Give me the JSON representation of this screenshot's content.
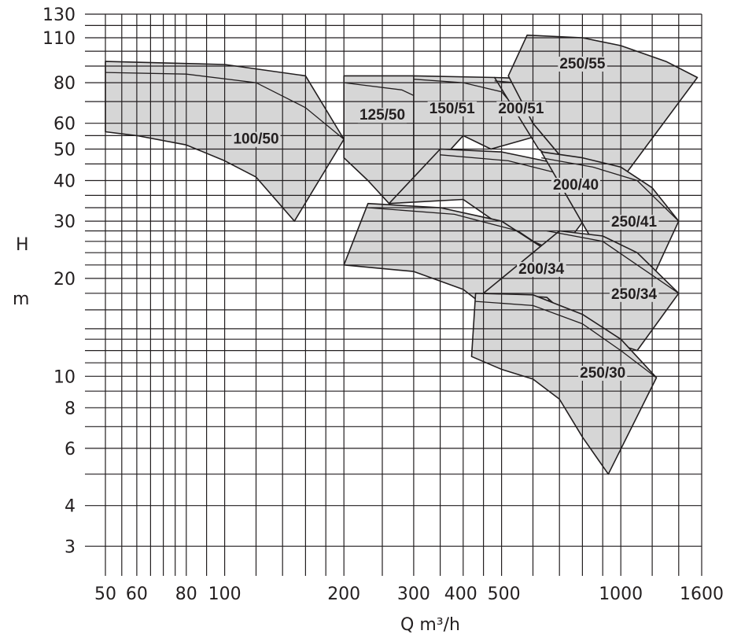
{
  "chart_data": {
    "type": "area",
    "title": "",
    "xlabel": "Q m³/h",
    "ylabel": "H m",
    "ylabel_parts": [
      "H",
      "m"
    ],
    "xscale": "log",
    "yscale": "log",
    "xlim": [
      50,
      1600
    ],
    "ylim": [
      2.6,
      130
    ],
    "grid": true,
    "x_ticks": [
      50,
      60,
      80,
      100,
      200,
      300,
      400,
      500,
      1000,
      1600
    ],
    "x_tick_labels": [
      "50",
      "60",
      "80",
      "100",
      "200",
      "300",
      "400",
      "500",
      "1000",
      "1600"
    ],
    "x_gridlines": [
      50,
      55,
      60,
      65,
      70,
      75,
      80,
      90,
      100,
      120,
      140,
      160,
      180,
      200,
      250,
      300,
      350,
      400,
      450,
      500,
      600,
      700,
      800,
      900,
      1000,
      1200,
      1400,
      1600
    ],
    "y_ticks": [
      3,
      4,
      6,
      8,
      10,
      20,
      30,
      40,
      50,
      60,
      80,
      110,
      130
    ],
    "y_tick_labels": [
      "3",
      "4",
      "6",
      "8",
      "10",
      "20",
      "30",
      "40",
      "50",
      "60",
      "80",
      "110",
      "130"
    ],
    "y_gridlines": [
      3,
      4,
      5,
      6,
      7,
      8,
      9,
      10,
      11,
      12,
      13,
      14,
      16,
      18,
      20,
      22,
      24,
      26,
      28,
      30,
      33,
      36,
      40,
      45,
      50,
      55,
      60,
      70,
      80,
      90,
      100,
      110,
      120,
      130
    ],
    "regions": [
      {
        "name": "100/50",
        "label_pos": [
          120,
          54
        ],
        "boundary": [
          [
            50,
            93
          ],
          [
            100,
            91
          ],
          [
            160,
            84
          ],
          [
            200,
            53.6
          ],
          [
            150,
            30
          ],
          [
            120,
            41
          ],
          [
            100,
            46
          ],
          [
            80,
            51.5
          ],
          [
            60,
            55
          ],
          [
            50,
            56.5
          ]
        ],
        "inner_curves": [
          [
            [
              50,
              86
            ],
            [
              80,
              85
            ],
            [
              120,
              80
            ],
            [
              160,
              67
            ],
            [
              200,
              53.6
            ]
          ]
        ]
      },
      {
        "name": "125/50",
        "label_pos": [
          250,
          64
        ],
        "boundary": [
          [
            200,
            84
          ],
          [
            300,
            84
          ],
          [
            350,
            80
          ],
          [
            400,
            55
          ],
          [
            260,
            34
          ],
          [
            230,
            40
          ],
          [
            200,
            47
          ]
        ],
        "inner_curves": [
          [
            [
              200,
              80
            ],
            [
              280,
              76
            ],
            [
              340,
              68
            ],
            [
              400,
              55
            ]
          ]
        ]
      },
      {
        "name": "150/51",
        "label_pos": [
          375,
          67
        ],
        "boundary": [
          [
            300,
            84
          ],
          [
            480,
            83
          ],
          [
            620,
            55
          ],
          [
            470,
            50
          ],
          [
            400,
            55
          ],
          [
            350,
            46
          ],
          [
            300,
            40
          ]
        ],
        "inner_curves": [
          [
            [
              300,
              82
            ],
            [
              400,
              80
            ],
            [
              500,
              75
            ],
            [
              620,
              55
            ]
          ]
        ]
      },
      {
        "name": "200/51",
        "label_pos": [
          560,
          67
        ],
        "boundary": [
          [
            480,
            83
          ],
          [
            650,
            82
          ],
          [
            780,
            77
          ],
          [
            1000,
            55
          ],
          [
            950,
            45
          ],
          [
            800,
            40
          ],
          [
            620,
            50
          ]
        ],
        "inner_curves": [
          [
            [
              480,
              81
            ],
            [
              700,
              78
            ],
            [
              850,
              70
            ],
            [
              1000,
              55
            ]
          ]
        ]
      },
      {
        "name": "250/55",
        "label_pos": [
          800,
          92
        ],
        "boundary": [
          [
            580,
            112
          ],
          [
            800,
            110
          ],
          [
            1000,
            104
          ],
          [
            1300,
            93
          ],
          [
            1560,
            83
          ],
          [
            1000,
            40
          ],
          [
            800,
            42
          ],
          [
            700,
            48
          ],
          [
            600,
            60
          ],
          [
            520,
            84
          ]
        ],
        "inner_curves": []
      },
      {
        "name": "200/40",
        "label_pos": [
          770,
          39
        ],
        "boundary": [
          [
            350,
            50
          ],
          [
            500,
            49
          ],
          [
            700,
            45
          ],
          [
            900,
            36
          ],
          [
            700,
            24
          ],
          [
            600,
            26
          ],
          [
            500,
            29
          ],
          [
            400,
            35
          ],
          [
            260,
            34
          ]
        ],
        "inner_curves": [
          [
            [
              350,
              48
            ],
            [
              520,
              46
            ],
            [
              700,
              42
            ],
            [
              900,
              36
            ]
          ]
        ]
      },
      {
        "name": "250/41",
        "label_pos": [
          1080,
          30
        ],
        "boundary": [
          [
            630,
            49
          ],
          [
            800,
            47
          ],
          [
            1000,
            44
          ],
          [
            1200,
            38
          ],
          [
            1400,
            30
          ],
          [
            1200,
            20
          ],
          [
            1000,
            22
          ],
          [
            850,
            26
          ]
        ],
        "inner_curves": [
          [
            [
              630,
              47
            ],
            [
              850,
              44
            ],
            [
              1100,
              40
            ],
            [
              1400,
              30
            ]
          ]
        ]
      },
      {
        "name": "200/34",
        "label_pos": [
          630,
          21.5
        ],
        "boundary": [
          [
            230,
            34
          ],
          [
            350,
            33
          ],
          [
            500,
            30
          ],
          [
            700,
            23
          ],
          [
            620,
            13
          ],
          [
            500,
            15
          ],
          [
            400,
            18.5
          ],
          [
            300,
            21
          ],
          [
            200,
            22
          ]
        ],
        "inner_curves": [
          [
            [
              230,
              33
            ],
            [
              380,
              31.5
            ],
            [
              550,
              28
            ],
            [
              700,
              23
            ]
          ]
        ]
      },
      {
        "name": "250/34",
        "label_pos": [
          1080,
          18
        ],
        "boundary": [
          [
            700,
            28
          ],
          [
            900,
            27
          ],
          [
            1100,
            24
          ],
          [
            1400,
            18
          ],
          [
            1100,
            12
          ],
          [
            900,
            13
          ],
          [
            750,
            15
          ],
          [
            650,
            17.5
          ],
          [
            450,
            18
          ]
        ],
        "inner_curves": [
          [
            [
              650,
              28
            ],
            [
              900,
              26
            ],
            [
              1100,
              22
            ],
            [
              1400,
              18
            ]
          ]
        ]
      },
      {
        "name": "250/30",
        "label_pos": [
          900,
          10.3
        ],
        "boundary": [
          [
            430,
            18
          ],
          [
            600,
            17.8
          ],
          [
            800,
            15.5
          ],
          [
            1000,
            13
          ],
          [
            1230,
            9.9
          ],
          [
            930,
            5
          ],
          [
            800,
            6.5
          ],
          [
            700,
            8.5
          ],
          [
            600,
            9.8
          ],
          [
            500,
            10.5
          ],
          [
            420,
            11.5
          ]
        ],
        "inner_curves": [
          [
            [
              430,
              17
            ],
            [
              600,
              16.5
            ],
            [
              800,
              14.5
            ],
            [
              1000,
              12
            ],
            [
              1230,
              9.9
            ]
          ]
        ]
      }
    ]
  }
}
